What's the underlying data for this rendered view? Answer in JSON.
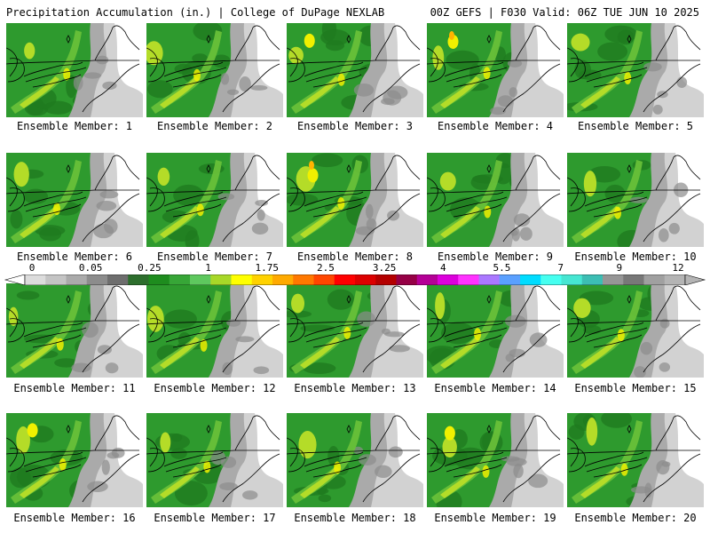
{
  "header": {
    "title": "Precipitation Accumulation (in.) | College of DuPage NEXLAB",
    "run_info": "00Z GEFS | F030 Valid: 06Z TUE JUN 10 2025"
  },
  "colorbar": {
    "tick_labels": [
      "0",
      "0.05",
      "0.25",
      "1",
      "1.75",
      "2.5",
      "3.25",
      "4",
      "5.5",
      "7",
      "9",
      "12"
    ],
    "colors": [
      "#dcdcdc",
      "#c4c4c4",
      "#aaaaaa",
      "#8c8c8c",
      "#6e6e6e",
      "#2d6e2d",
      "#1e8c1e",
      "#37a637",
      "#5ec85e",
      "#a8d828",
      "#ffff00",
      "#ffd200",
      "#ffaa00",
      "#ff7800",
      "#ff4600",
      "#ff0000",
      "#dc0000",
      "#b40000",
      "#960046",
      "#b40096",
      "#dc00dc",
      "#ff32ff",
      "#aa78ff",
      "#5aa0ff",
      "#00dcff",
      "#46fff0",
      "#46e6d2",
      "#3cbeb4",
      "#969696",
      "#787878",
      "#a0a0a0",
      "#b4b4b4"
    ]
  },
  "members": [
    {
      "label": "Ensemble Member: 1"
    },
    {
      "label": "Ensemble Member: 2"
    },
    {
      "label": "Ensemble Member: 3"
    },
    {
      "label": "Ensemble Member: 4"
    },
    {
      "label": "Ensemble Member: 5"
    },
    {
      "label": "Ensemble Member: 6"
    },
    {
      "label": "Ensemble Member: 7"
    },
    {
      "label": "Ensemble Member: 8"
    },
    {
      "label": "Ensemble Member: 9"
    },
    {
      "label": "Ensemble Member: 10"
    },
    {
      "label": "Ensemble Member: 11"
    },
    {
      "label": "Ensemble Member: 12"
    },
    {
      "label": "Ensemble Member: 13"
    },
    {
      "label": "Ensemble Member: 14"
    },
    {
      "label": "Ensemble Member: 15"
    },
    {
      "label": "Ensemble Member: 16"
    },
    {
      "label": "Ensemble Member: 17"
    },
    {
      "label": "Ensemble Member: 18"
    },
    {
      "label": "Ensemble Member: 19"
    },
    {
      "label": "Ensemble Member: 20"
    }
  ],
  "map_colors": {
    "land_green": "#2e9a2e",
    "dark_green": "#1f7a1f",
    "light_green": "#6cc23a",
    "yellow_green": "#b4dc28",
    "yellow": "#f0f000",
    "orange": "#ffb400",
    "gray_dark": "#8c8c8c",
    "gray_mid": "#aaaaaa",
    "gray_light": "#d2d2d2",
    "white": "#ffffff"
  }
}
